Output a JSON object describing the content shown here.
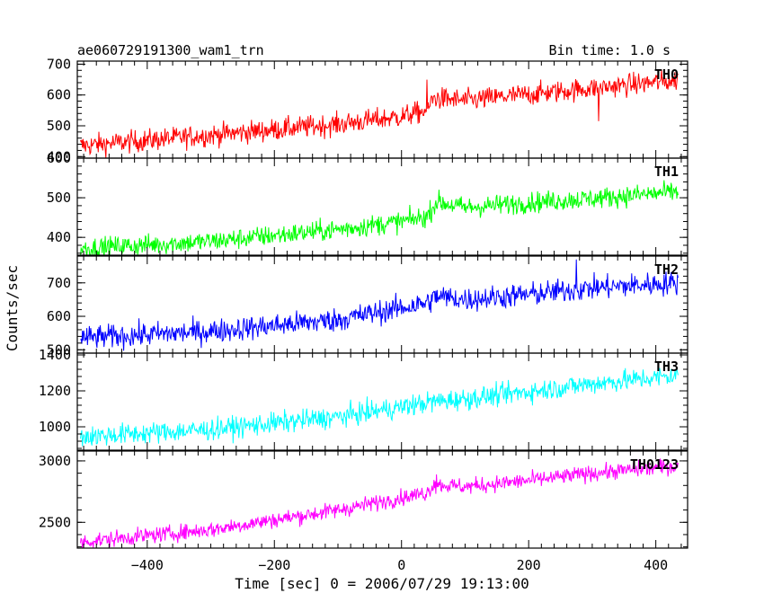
{
  "chart_data": {
    "type": "line",
    "title": "ae060729191300_wam1_trn",
    "bin_time_label": "Bin time: 1.0 s",
    "xlabel": "Time [sec] 0 = 2006/07/29 19:13:00",
    "ylabel": "Counts/sec",
    "xlim": [
      -510,
      450
    ],
    "x_ticks": [
      -400,
      -200,
      0,
      200,
      400
    ],
    "x_tick_labels": [
      "−400",
      "−200",
      "0",
      "200",
      "400"
    ],
    "grid": false,
    "line_color_note": "each panel drawn in its own color",
    "panels": [
      {
        "name": "TH0",
        "color": "#ff0000",
        "ylim": [
          395,
          710
        ],
        "yticks": [
          400,
          500,
          600,
          700
        ],
        "ytick_labels": [
          "400",
          "500",
          "600",
          "700"
        ],
        "x_range": [
          -505,
          435
        ],
        "trend": [
          [
            -505,
            435
          ],
          [
            -300,
            470
          ],
          [
            -100,
            505
          ],
          [
            0,
            530
          ],
          [
            40,
            550
          ],
          [
            50,
            590
          ],
          [
            100,
            582
          ],
          [
            200,
            602
          ],
          [
            300,
            622
          ],
          [
            435,
            648
          ]
        ],
        "noise": 30,
        "spikes": [
          [
            40,
            650
          ],
          [
            310,
            515
          ]
        ]
      },
      {
        "name": "TH1",
        "color": "#00ff00",
        "ylim": [
          355,
          600
        ],
        "yticks": [
          400,
          500,
          600
        ],
        "ytick_labels": [
          "400",
          "500",
          "600"
        ],
        "x_range": [
          -505,
          435
        ],
        "trend": [
          [
            -505,
            372
          ],
          [
            -300,
            390
          ],
          [
            -100,
            420
          ],
          [
            0,
            440
          ],
          [
            40,
            452
          ],
          [
            55,
            490
          ],
          [
            100,
            475
          ],
          [
            200,
            488
          ],
          [
            300,
            498
          ],
          [
            435,
            515
          ]
        ],
        "noise": 22,
        "spikes": []
      },
      {
        "name": "TH2",
        "color": "#0000ff",
        "ylim": [
          490,
          780
        ],
        "yticks": [
          500,
          600,
          700
        ],
        "ytick_labels": [
          "500",
          "600",
          "700"
        ],
        "x_range": [
          -505,
          435
        ],
        "trend": [
          [
            -505,
            535
          ],
          [
            -300,
            555
          ],
          [
            -100,
            590
          ],
          [
            0,
            625
          ],
          [
            40,
            640
          ],
          [
            55,
            660
          ],
          [
            100,
            650
          ],
          [
            200,
            665
          ],
          [
            300,
            685
          ],
          [
            435,
            700
          ]
        ],
        "noise": 30,
        "spikes": [
          [
            275,
            770
          ]
        ]
      },
      {
        "name": "TH3",
        "color": "#00ffff",
        "ylim": [
          870,
          1410
        ],
        "yticks": [
          1000,
          1200,
          1400
        ],
        "ytick_labels": [
          "1000",
          "1200",
          "1400"
        ],
        "x_range": [
          -505,
          435
        ],
        "trend": [
          [
            -505,
            945
          ],
          [
            -300,
            985
          ],
          [
            -100,
            1055
          ],
          [
            0,
            1110
          ],
          [
            50,
            1140
          ],
          [
            100,
            1155
          ],
          [
            200,
            1195
          ],
          [
            300,
            1240
          ],
          [
            435,
            1285
          ]
        ],
        "noise": 50,
        "spikes": []
      },
      {
        "name": "TH0123",
        "color": "#ff00ff",
        "ylim": [
          2290,
          3080
        ],
        "yticks": [
          2500,
          3000
        ],
        "ytick_labels": [
          "2500",
          "3000"
        ],
        "x_range": [
          -505,
          435
        ],
        "trend": [
          [
            -505,
            2340
          ],
          [
            -300,
            2440
          ],
          [
            -100,
            2600
          ],
          [
            0,
            2700
          ],
          [
            40,
            2740
          ],
          [
            50,
            2810
          ],
          [
            100,
            2790
          ],
          [
            200,
            2840
          ],
          [
            300,
            2900
          ],
          [
            435,
            2960
          ]
        ],
        "noise": 55,
        "spikes": [
          [
            55,
            2890
          ]
        ]
      }
    ]
  }
}
